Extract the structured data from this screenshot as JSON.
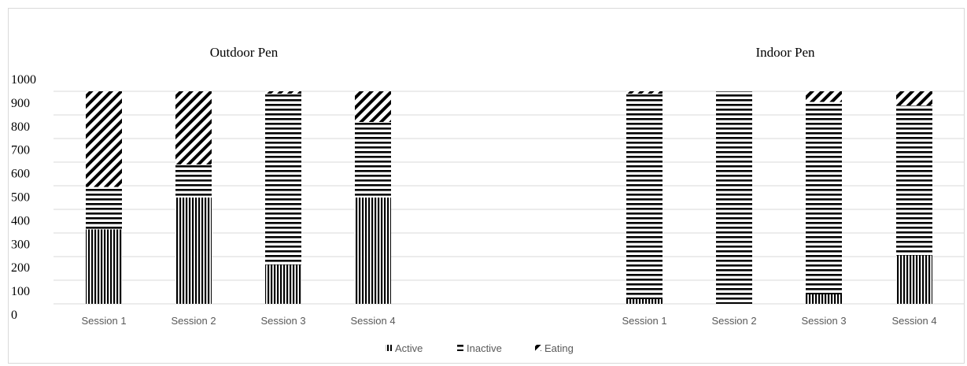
{
  "chart_data": {
    "type": "bar",
    "stacked": true,
    "panels": [
      {
        "title": "Outdoor Pen",
        "categories": [
          "Session 1",
          "Session 2",
          "Session 3",
          "Session 4"
        ],
        "series": [
          {
            "name": "Active",
            "values": [
              315,
              450,
              165,
              450
            ]
          },
          {
            "name": "Inactive",
            "values": [
              180,
              140,
              725,
              320
            ]
          },
          {
            "name": "Eating",
            "values": [
              405,
              310,
              10,
              130
            ]
          }
        ]
      },
      {
        "title": "Indoor Pen",
        "categories": [
          "Session 1",
          "Session 2",
          "Session 3",
          "Session 4"
        ],
        "series": [
          {
            "name": "Active",
            "values": [
              20,
              0,
              40,
              205
            ]
          },
          {
            "name": "Inactive",
            "values": [
              870,
              900,
              815,
              635
            ]
          },
          {
            "name": "Eating",
            "values": [
              10,
              0,
              45,
              60
            ]
          }
        ]
      }
    ],
    "yticks": [
      "0",
      "100",
      "200",
      "300",
      "400",
      "500",
      "600",
      "700",
      "800",
      "900",
      "1000"
    ],
    "ylim": [
      0,
      1000
    ],
    "xlabel": "",
    "ylabel": "",
    "grid": true,
    "legend": {
      "position": "bottom-center",
      "entries": [
        "Active",
        "Inactive",
        "Eating"
      ]
    }
  }
}
